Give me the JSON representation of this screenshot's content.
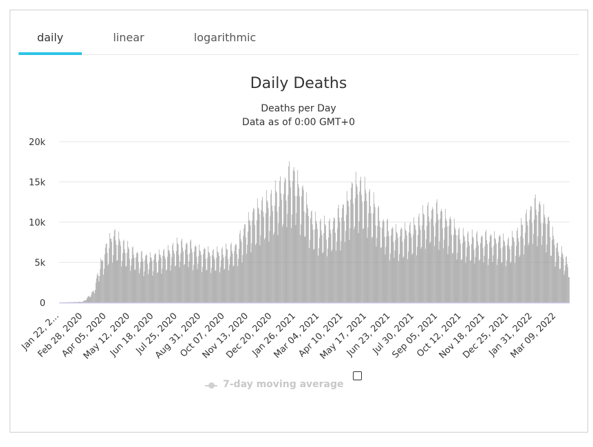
{
  "tabs": [
    {
      "label": "daily",
      "active": true
    },
    {
      "label": "linear",
      "active": false
    },
    {
      "label": "logarithmic",
      "active": false
    }
  ],
  "colors": {
    "accent": "#2ec4e6",
    "bars": "#9a9a9a",
    "grid": "#e6e6e6",
    "axis": "#c9c9e6",
    "legend_disabled": "#c8c8c8"
  },
  "legend": {
    "label": "7-day moving average",
    "checked": false
  },
  "chart_data": {
    "type": "bar",
    "title": "Daily Deaths",
    "subtitle_lines": [
      "Deaths per Day",
      "Data as of 0:00 GMT+0"
    ],
    "xlabel": "",
    "ylabel": "",
    "ylim": [
      0,
      20000
    ],
    "y_ticks": [
      {
        "value": 0,
        "label": "0"
      },
      {
        "value": 5000,
        "label": "5k"
      },
      {
        "value": 10000,
        "label": "10k"
      },
      {
        "value": 15000,
        "label": "15k"
      },
      {
        "value": 20000,
        "label": "20k"
      }
    ],
    "x_start": "2020-01-22",
    "x_end": "2022-03-30",
    "x_tick_labels": [
      {
        "date": "2020-01-22",
        "label": "Jan 22, 2..."
      },
      {
        "date": "2020-02-28",
        "label": "Feb 28, 2020"
      },
      {
        "date": "2020-04-05",
        "label": "Apr 05, 2020"
      },
      {
        "date": "2020-05-12",
        "label": "May 12, 2020"
      },
      {
        "date": "2020-06-18",
        "label": "Jun 18, 2020"
      },
      {
        "date": "2020-07-25",
        "label": "Jul 25, 2020"
      },
      {
        "date": "2020-08-31",
        "label": "Aug 31, 2020"
      },
      {
        "date": "2020-10-07",
        "label": "Oct 07, 2020"
      },
      {
        "date": "2020-11-13",
        "label": "Nov 13, 2020"
      },
      {
        "date": "2020-12-20",
        "label": "Dec 20, 2020"
      },
      {
        "date": "2021-01-26",
        "label": "Jan 26, 2021"
      },
      {
        "date": "2021-03-04",
        "label": "Mar 04, 2021"
      },
      {
        "date": "2021-04-10",
        "label": "Apr 10, 2021"
      },
      {
        "date": "2021-05-17",
        "label": "May 17, 2021"
      },
      {
        "date": "2021-06-23",
        "label": "Jun 23, 2021"
      },
      {
        "date": "2021-07-30",
        "label": "Jul 30, 2021"
      },
      {
        "date": "2021-09-05",
        "label": "Sep 05, 2021"
      },
      {
        "date": "2021-10-12",
        "label": "Oct 12, 2021"
      },
      {
        "date": "2021-11-18",
        "label": "Nov 18, 2021"
      },
      {
        "date": "2021-12-25",
        "label": "Dec 25, 2021"
      },
      {
        "date": "2022-01-31",
        "label": "Jan 31, 2022"
      },
      {
        "date": "2022-03-09",
        "label": "Mar 09, 2022"
      }
    ],
    "trend_points": [
      {
        "date": "2020-01-22",
        "value": 0
      },
      {
        "date": "2020-02-28",
        "value": 100
      },
      {
        "date": "2020-03-15",
        "value": 1200
      },
      {
        "date": "2020-03-25",
        "value": 4000
      },
      {
        "date": "2020-04-05",
        "value": 6200
      },
      {
        "date": "2020-04-16",
        "value": 7600
      },
      {
        "date": "2020-04-30",
        "value": 6400
      },
      {
        "date": "2020-05-12",
        "value": 5700
      },
      {
        "date": "2020-06-01",
        "value": 5000
      },
      {
        "date": "2020-06-18",
        "value": 5000
      },
      {
        "date": "2020-07-10",
        "value": 5600
      },
      {
        "date": "2020-07-25",
        "value": 6300
      },
      {
        "date": "2020-08-10",
        "value": 6300
      },
      {
        "date": "2020-08-31",
        "value": 5700
      },
      {
        "date": "2020-09-20",
        "value": 5400
      },
      {
        "date": "2020-10-07",
        "value": 5600
      },
      {
        "date": "2020-10-25",
        "value": 6200
      },
      {
        "date": "2020-11-13",
        "value": 9000
      },
      {
        "date": "2020-11-30",
        "value": 10500
      },
      {
        "date": "2020-12-20",
        "value": 11300
      },
      {
        "date": "2021-01-10",
        "value": 13200
      },
      {
        "date": "2021-01-21",
        "value": 14300
      },
      {
        "date": "2021-02-05",
        "value": 12200
      },
      {
        "date": "2021-02-20",
        "value": 9300
      },
      {
        "date": "2021-03-04",
        "value": 8400
      },
      {
        "date": "2021-03-20",
        "value": 8300
      },
      {
        "date": "2021-04-10",
        "value": 10200
      },
      {
        "date": "2021-04-28",
        "value": 12900
      },
      {
        "date": "2021-05-10",
        "value": 12700
      },
      {
        "date": "2021-05-25",
        "value": 11000
      },
      {
        "date": "2021-06-10",
        "value": 8900
      },
      {
        "date": "2021-06-23",
        "value": 7900
      },
      {
        "date": "2021-07-10",
        "value": 7700
      },
      {
        "date": "2021-07-30",
        "value": 8300
      },
      {
        "date": "2021-08-20",
        "value": 9900
      },
      {
        "date": "2021-09-05",
        "value": 10100
      },
      {
        "date": "2021-09-25",
        "value": 8800
      },
      {
        "date": "2021-10-12",
        "value": 7300
      },
      {
        "date": "2021-10-30",
        "value": 7000
      },
      {
        "date": "2021-11-18",
        "value": 7100
      },
      {
        "date": "2021-12-05",
        "value": 7100
      },
      {
        "date": "2021-12-25",
        "value": 6600
      },
      {
        "date": "2022-01-10",
        "value": 7600
      },
      {
        "date": "2022-01-31",
        "value": 10400
      },
      {
        "date": "2022-02-10",
        "value": 10700
      },
      {
        "date": "2022-02-25",
        "value": 9000
      },
      {
        "date": "2022-03-09",
        "value": 6400
      },
      {
        "date": "2022-03-30",
        "value": 4200
      }
    ]
  }
}
